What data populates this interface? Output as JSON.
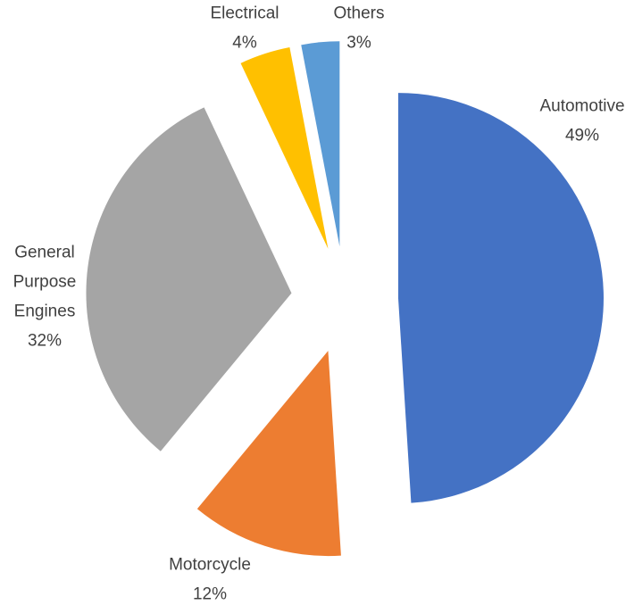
{
  "chart_data": {
    "type": "pie",
    "categories": [
      "Automotive",
      "Motorcycle",
      "General Purpose Engines",
      "Electrical",
      "Others"
    ],
    "values": [
      49,
      12,
      32,
      4,
      3
    ],
    "value_labels": [
      "49%",
      "12%",
      "32%",
      "4%",
      "3%"
    ],
    "colors": [
      "#4472c4",
      "#ed7d31",
      "#a5a5a5",
      "#ffc000",
      "#5b9bd5"
    ]
  }
}
